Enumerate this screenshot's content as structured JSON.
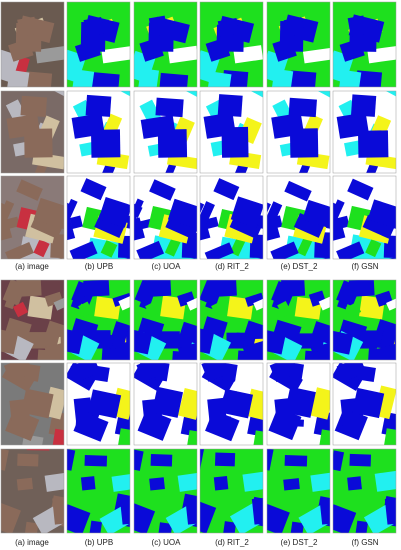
{
  "figure": {
    "groups": [
      {
        "captions": [
          "(a) image",
          "(b) UPB",
          "(c) UOA",
          "(d) RIT_2",
          "(e) DST_2",
          "(f) GSN"
        ]
      },
      {
        "captions": [
          "(a) image",
          "(b) UPB",
          "(c) UOA",
          "(d) RIT_2",
          "(e) DST_2",
          "(f) GSN"
        ]
      }
    ]
  }
}
